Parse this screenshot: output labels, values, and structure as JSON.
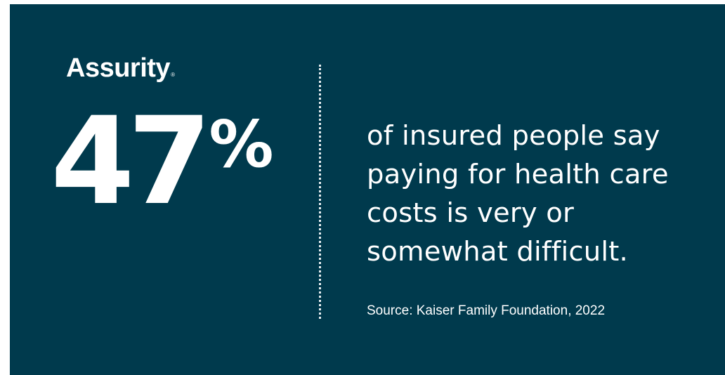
{
  "brand": {
    "logo_text": "Assurity",
    "registered_mark": "®"
  },
  "stat": {
    "number": "47",
    "unit": "%"
  },
  "statement": "of insured people say paying for health care costs is very or somewhat difficult.",
  "source": "Source: Kaiser Family Foundation, 2022",
  "colors": {
    "background": "#003a4d",
    "text": "#ffffff"
  }
}
